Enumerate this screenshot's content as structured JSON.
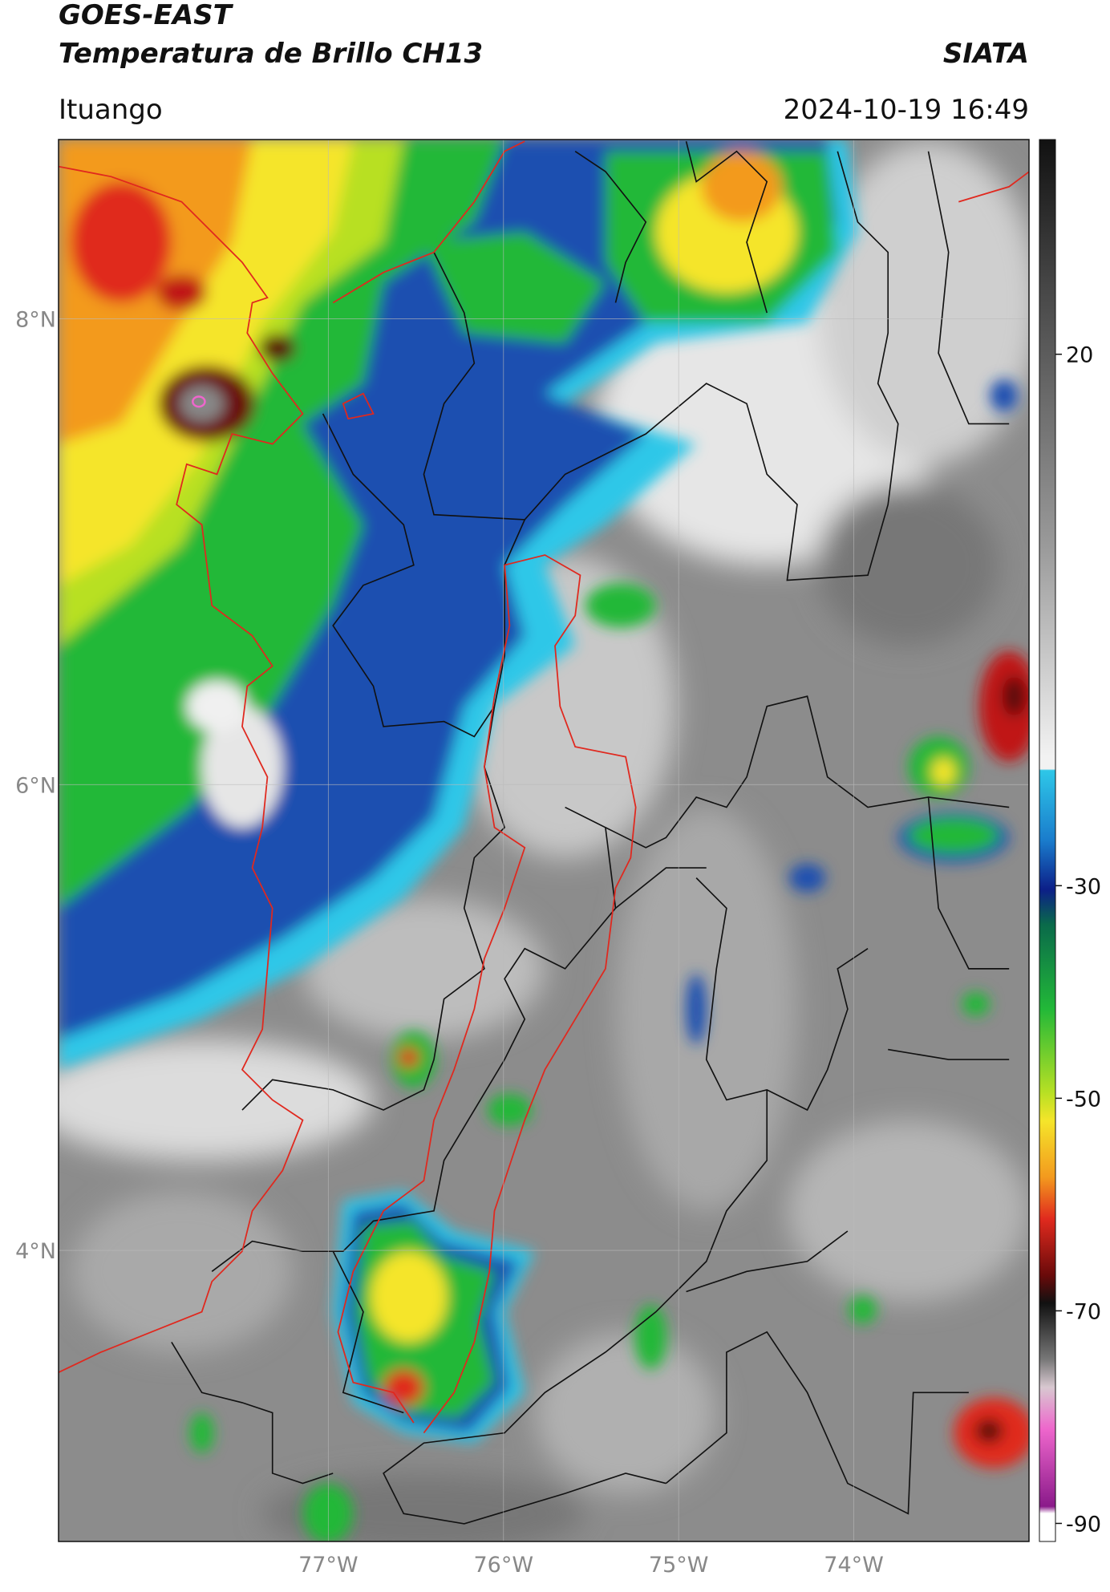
{
  "header": {
    "title": "GOES-EAST",
    "subtitle": "Temperatura de Brillo CH13",
    "source": "SIATA",
    "location": "Ituango",
    "datetime": "2024-10-19 16:49"
  },
  "map": {
    "xlim": [
      -78.54,
      -73.0
    ],
    "ylim": [
      2.75,
      8.77
    ],
    "xticks": [
      {
        "value": -77,
        "label": "77°W"
      },
      {
        "value": -76,
        "label": "76°W"
      },
      {
        "value": -75,
        "label": "75°W"
      },
      {
        "value": -74,
        "label": "74°W"
      }
    ],
    "yticks": [
      {
        "value": 8,
        "label": "8°N"
      },
      {
        "value": 6,
        "label": "6°N"
      },
      {
        "value": 4,
        "label": "4°N"
      }
    ],
    "grid": true
  },
  "colorbar": {
    "lim": [
      -91.7,
      40.2
    ],
    "ticks": [
      20,
      -30,
      -50,
      -70,
      -90
    ]
  }
}
